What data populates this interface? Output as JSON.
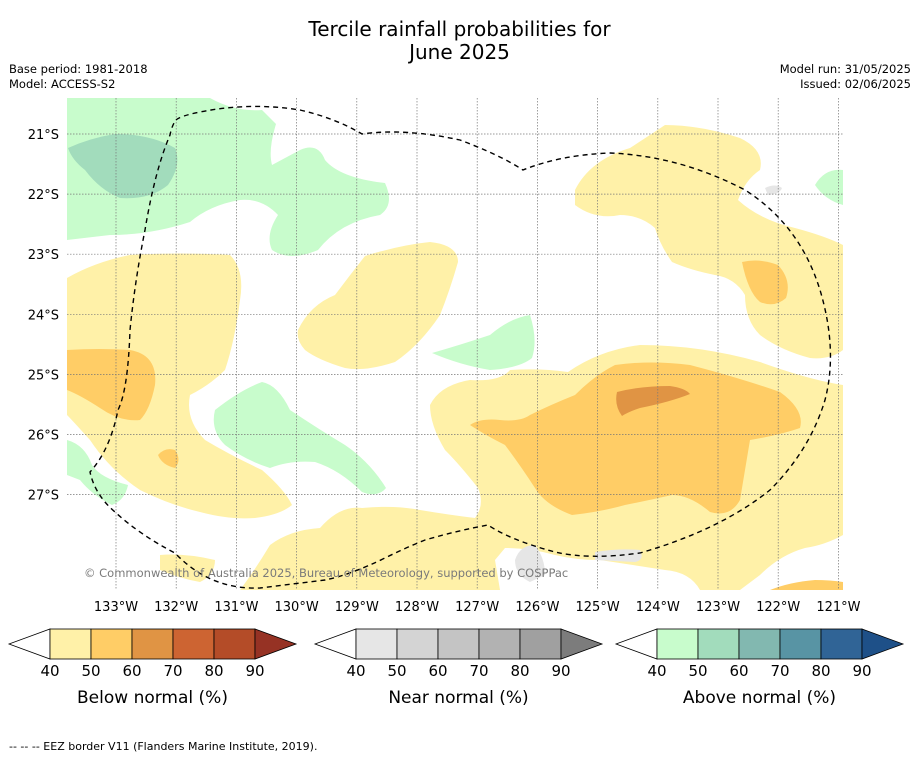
{
  "title_line1": "Tercile rainfall probabilities for",
  "title_line2": "June 2025",
  "base_period": "Base period: 1981-2018",
  "model": "Model: ACCESS-S2",
  "model_run": "Model run: 31/05/2025",
  "issued": "Issued: 02/06/2025",
  "copyright": "© Commonwealth of Australia 2025, Bureau of Meteorology, supported by COSPPac",
  "lat_labels": [
    "21°S",
    "22°S",
    "23°S",
    "24°S",
    "25°S",
    "26°S",
    "27°S"
  ],
  "lon_labels": [
    "133°W",
    "132°W",
    "131°W",
    "130°W",
    "129°W",
    "128°W",
    "127°W",
    "126°W",
    "125°W",
    "124°W",
    "123°W",
    "122°W",
    "121°W"
  ],
  "legends": [
    {
      "label": "Below normal (%)",
      "ticks": [
        "40",
        "50",
        "60",
        "70",
        "80",
        "90"
      ],
      "colors": [
        "#fff1a8",
        "#ffcd66",
        "#e09444",
        "#cd6432",
        "#b44c28",
        "#963224"
      ]
    },
    {
      "label": "Near normal (%)",
      "ticks": [
        "40",
        "50",
        "60",
        "70",
        "80",
        "90"
      ],
      "colors": [
        "#e6e6e6",
        "#d4d4d4",
        "#c4c4c4",
        "#b2b2b2",
        "#a0a0a0",
        "#7c7c7c"
      ]
    },
    {
      "label": "Above normal (%)",
      "ticks": [
        "40",
        "50",
        "60",
        "70",
        "80",
        "90"
      ],
      "colors": [
        "#c8fccc",
        "#a2dcbc",
        "#82b8b0",
        "#5894a4",
        "#306496",
        "#1e5088"
      ]
    }
  ],
  "footnote": "--  --  -- EEZ border V11 (Flanders Marine Institute, 2019)."
}
